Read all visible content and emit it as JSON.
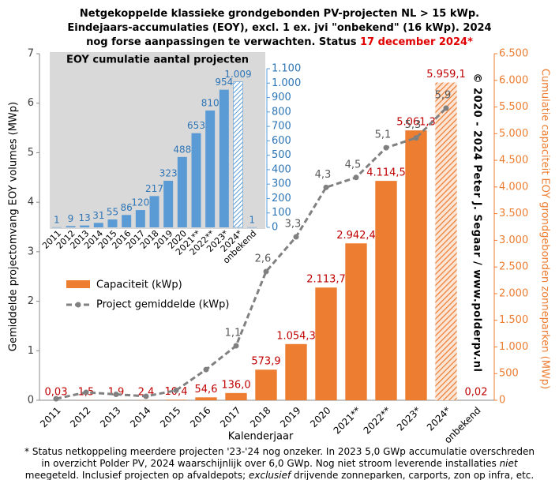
{
  "chart_data": {
    "type": "bar",
    "title_lines": [
      "Netgekoppelde klassieke grondgebonden PV-projecten NL > 15 kWp.",
      "Eindejaars-accumulaties (EOY), excl. 1 ex. jvi \"onbekend\" (16 kWp). 2024",
      "nog forse aanpassingen te verwachten. Status "
    ],
    "title_highlight": "17 december 2024*",
    "categories": [
      "2011",
      "2012",
      "2013",
      "2014",
      "2015",
      "2016",
      "2017",
      "2018",
      "2019",
      "2020",
      "2021**",
      "2022**",
      "2023*",
      "2024*",
      "onbekend"
    ],
    "xlabel": "Kalenderjaar",
    "ylabel": "Gemiddelde projectomvang EOY volumes (MWp)",
    "y2label": "Cumulatie capaciteit EOY grondgebonden zonneparken (MWp)",
    "ylim": [
      0,
      7
    ],
    "yticks": [
      0,
      1,
      2,
      3,
      4,
      5,
      6,
      7
    ],
    "y2lim": [
      0,
      6500
    ],
    "y2ticks": [
      0,
      500,
      {
        "value": 1000,
        "label": "1.000"
      },
      {
        "value": 1500,
        "label": "1.500"
      },
      {
        "value": 2000,
        "label": "2.000"
      },
      {
        "value": 2500,
        "label": "2.500"
      },
      {
        "value": 3000,
        "label": "3.000"
      },
      {
        "value": 3500,
        "label": "3.500"
      },
      {
        "value": 4000,
        "label": "4.000"
      },
      {
        "value": 4500,
        "label": "4.500"
      },
      {
        "value": 5000,
        "label": "5.000"
      },
      {
        "value": 5500,
        "label": "5.500"
      },
      {
        "value": 6000,
        "label": "6.000"
      },
      {
        "value": 6500,
        "label": "6.500"
      }
    ],
    "series": [
      {
        "name": "Capaciteit (kWp)",
        "type": "bar",
        "axis": "y2",
        "color": "#ed7d31",
        "values": [
          0.03,
          1.5,
          1.9,
          2.4,
          10.4,
          54.6,
          136.0,
          573.9,
          1054.3,
          2113.7,
          2942.4,
          4114.5,
          5061.3,
          5959.1,
          0.02
        ],
        "value_labels": [
          "0,03",
          "1,5",
          "1,9",
          "2,4",
          "10,4",
          "54,6",
          "136,0",
          "573,9",
          "1.054,3",
          "2.113,7",
          "2.942,4",
          "4.114,5",
          "5.061,3",
          "5.959,1",
          "0,02"
        ],
        "hatched": [
          false,
          false,
          false,
          false,
          false,
          false,
          false,
          false,
          false,
          false,
          false,
          false,
          false,
          true,
          false
        ]
      },
      {
        "name": "Project gemiddelde (kWp)",
        "type": "line",
        "axis": "y",
        "color": "#808080",
        "values": [
          0.03,
          0.16,
          0.12,
          0.08,
          0.2,
          0.62,
          1.1,
          2.6,
          3.3,
          4.3,
          4.5,
          5.1,
          5.3,
          5.9,
          null
        ],
        "value_labels": [
          null,
          null,
          null,
          null,
          null,
          null,
          "1,1",
          "2,6",
          "3,3",
          "4,3",
          "4,5",
          "5,1",
          "5,3",
          "5,9",
          null
        ]
      }
    ],
    "legend": "left",
    "copyright": "© 2020 - 2024 Peter J. Segaar / www.polderpv.nl",
    "footnote": [
      [
        {
          "text": "* Status netkoppeling meerdere projecten '23-'24 nog onzeker. In 2023 5,0 GWp accumulatie overschreden",
          "italic": false
        }
      ],
      [
        {
          "text": "in overzicht Polder PV, 2024 waarschijnlijk over 6,0 GWp. Nog niet stroom leverende installaties ",
          "italic": false
        },
        {
          "text": "niet",
          "italic": true
        }
      ],
      [
        {
          "text": "meegeteld. Inclusief projecten op afvaldepots; ",
          "italic": false
        },
        {
          "text": "exclusief",
          "italic": true
        },
        {
          "text": " drijvende zonneparken, carports, zon op infra, etc.",
          "italic": false
        }
      ]
    ],
    "inset": {
      "type": "bar",
      "title": "EOY cumulatie aantal projecten",
      "categories": [
        "2011",
        "2012",
        "2013",
        "2014",
        "2015",
        "2016",
        "2017",
        "2018",
        "2019",
        "2020",
        "2021**",
        "2022**",
        "2023*",
        "2024*",
        "onbekend"
      ],
      "color": "#5b9bd5",
      "values": [
        1,
        9,
        13,
        31,
        55,
        86,
        120,
        217,
        323,
        488,
        653,
        810,
        954,
        1009,
        1
      ],
      "value_labels": [
        "1",
        "9",
        "13",
        "31",
        "55",
        "86",
        "120",
        "217",
        "323",
        "488",
        "653",
        "810",
        "954",
        "1.009",
        "1"
      ],
      "hatched": [
        false,
        false,
        false,
        false,
        false,
        false,
        false,
        false,
        false,
        false,
        false,
        false,
        false,
        true,
        false
      ],
      "ylim": [
        0,
        1100
      ],
      "yticks": [
        0,
        100,
        200,
        300,
        400,
        500,
        600,
        700,
        800,
        900,
        {
          "value": 1000,
          "label": "1.000"
        },
        {
          "value": 1100,
          "label": "1.100"
        }
      ]
    }
  }
}
